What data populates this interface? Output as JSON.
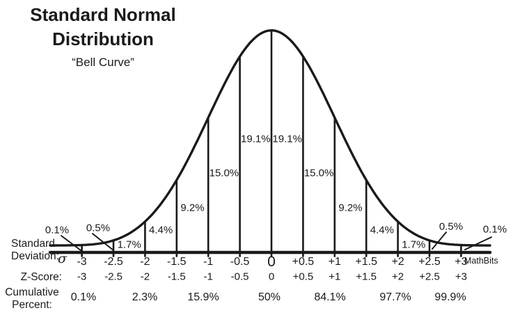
{
  "title": {
    "line1": "Standard Normal",
    "line2": "Distribution",
    "subtitle": "“Bell Curve”"
  },
  "watermark": "MathBits",
  "colors": {
    "ink": "#1a1a1a",
    "background": "#ffffff"
  },
  "rows": {
    "sd_label_line1": "Standard",
    "sd_label_line2": "Deviation:",
    "sigma_symbol": "σ",
    "z_label": "Z-Score:",
    "cum_label_line1": "Cumulative",
    "cum_label_line2": "Percent:"
  },
  "chart_data": {
    "type": "area",
    "title": "Standard Normal Distribution",
    "subtitle": "Bell Curve",
    "distribution": "standard normal probability density",
    "x_axis_rows": [
      "Standard Deviation",
      "Z-Score"
    ],
    "grid": false,
    "legend": false,
    "x_ticks": [
      "-3",
      "-2.5",
      "-2",
      "-1.5",
      "-1",
      "-0.5",
      "0",
      "+0.5",
      "+1",
      "+1.5",
      "+2",
      "+2.5",
      "+3"
    ],
    "z_ticks": [
      "-3",
      "-2.5",
      "-2",
      "-1.5",
      "-1",
      "-0.5",
      "0",
      "+0.5",
      "+1",
      "+1.5",
      "+2",
      "+2.5",
      "+3"
    ],
    "segments": [
      {
        "percent": "0.1%",
        "z_from": null,
        "z_to": -3,
        "z_mid": -3.3,
        "callout": true
      },
      {
        "percent": "0.5%",
        "z_from": -3,
        "z_to": -2.5,
        "z_mid": -2.75,
        "callout": true
      },
      {
        "percent": "1.7%",
        "z_from": -2.5,
        "z_to": -2,
        "z_mid": -2.25,
        "callout": false
      },
      {
        "percent": "4.4%",
        "z_from": -2,
        "z_to": -1.5,
        "z_mid": -1.75,
        "callout": false
      },
      {
        "percent": "9.2%",
        "z_from": -1.5,
        "z_to": -1,
        "z_mid": -1.25,
        "callout": false
      },
      {
        "percent": "15.0%",
        "z_from": -1,
        "z_to": -0.5,
        "z_mid": -0.75,
        "callout": false
      },
      {
        "percent": "19.1%",
        "z_from": -0.5,
        "z_to": 0,
        "z_mid": -0.25,
        "callout": false
      },
      {
        "percent": "19.1%",
        "z_from": 0,
        "z_to": 0.5,
        "z_mid": 0.25,
        "callout": false
      },
      {
        "percent": "15.0%",
        "z_from": 0.5,
        "z_to": 1,
        "z_mid": 0.75,
        "callout": false
      },
      {
        "percent": "9.2%",
        "z_from": 1,
        "z_to": 1.5,
        "z_mid": 1.25,
        "callout": false
      },
      {
        "percent": "4.4%",
        "z_from": 1.5,
        "z_to": 2,
        "z_mid": 1.75,
        "callout": false
      },
      {
        "percent": "1.7%",
        "z_from": 2,
        "z_to": 2.5,
        "z_mid": 2.25,
        "callout": false
      },
      {
        "percent": "0.5%",
        "z_from": 2.5,
        "z_to": 3,
        "z_mid": 2.75,
        "callout": true
      },
      {
        "percent": "0.1%",
        "z_from": 3,
        "z_to": null,
        "z_mid": 3.3,
        "callout": true
      }
    ],
    "cumulative": [
      {
        "z": "-3",
        "percent": "0.1%"
      },
      {
        "z": "-2",
        "percent": "2.3%"
      },
      {
        "z": "-1",
        "percent": "15.9%"
      },
      {
        "z": "0",
        "percent": "50%"
      },
      {
        "z": "+1",
        "percent": "84.1%"
      },
      {
        "z": "+2",
        "percent": "97.7%"
      },
      {
        "z": "+3",
        "percent": "99.9%"
      }
    ]
  }
}
